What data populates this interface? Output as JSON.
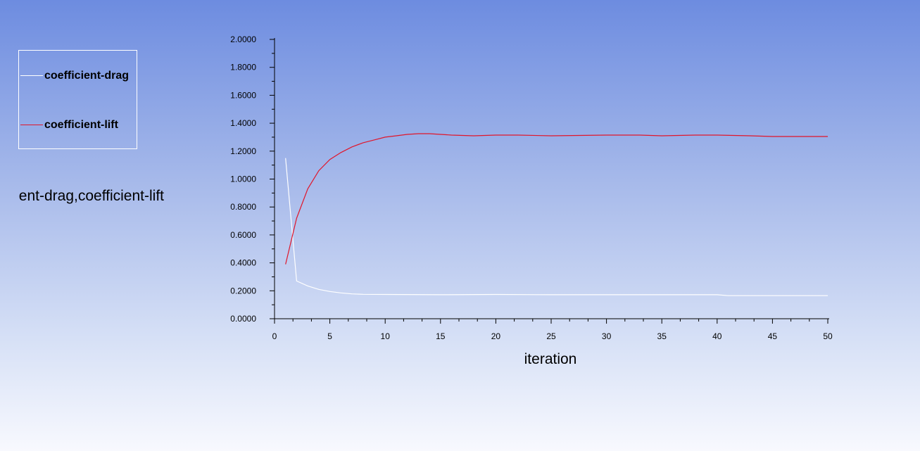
{
  "chart_data": {
    "type": "line",
    "title": "",
    "xlabel": "iteration",
    "ylabel": "ent-drag,coefficient-lift",
    "xlim": [
      0,
      50
    ],
    "ylim": [
      0,
      2
    ],
    "x_ticks": [
      "0",
      "5",
      "10",
      "15",
      "20",
      "25",
      "30",
      "35",
      "40",
      "45",
      "50"
    ],
    "y_ticks": [
      "0.0000",
      "0.2000",
      "0.4000",
      "0.6000",
      "0.8000",
      "1.0000",
      "1.2000",
      "1.4000",
      "1.6000",
      "1.8000",
      "2.0000"
    ],
    "grid": false,
    "legend_position": "left",
    "series": [
      {
        "name": "coefficient-drag",
        "color": "#ffffff",
        "x": [
          1,
          2,
          3,
          4,
          5,
          6,
          7,
          8,
          10,
          15,
          20,
          25,
          30,
          35,
          40,
          41,
          45,
          50
        ],
        "y": [
          1.15,
          0.27,
          0.235,
          0.21,
          0.195,
          0.185,
          0.178,
          0.175,
          0.174,
          0.172,
          0.174,
          0.172,
          0.172,
          0.172,
          0.172,
          0.165,
          0.165,
          0.165
        ]
      },
      {
        "name": "coefficient-lift",
        "color": "#e0162b",
        "x": [
          1,
          2,
          3,
          4,
          5,
          6,
          7,
          8,
          9,
          10,
          11,
          12,
          13,
          14,
          15,
          16,
          18,
          20,
          22,
          25,
          30,
          33,
          35,
          38,
          40,
          43,
          45,
          50
        ],
        "y": [
          0.39,
          0.72,
          0.93,
          1.06,
          1.14,
          1.19,
          1.23,
          1.26,
          1.28,
          1.3,
          1.31,
          1.32,
          1.325,
          1.325,
          1.32,
          1.315,
          1.31,
          1.315,
          1.315,
          1.31,
          1.315,
          1.315,
          1.31,
          1.315,
          1.315,
          1.31,
          1.305,
          1.305
        ]
      }
    ]
  }
}
